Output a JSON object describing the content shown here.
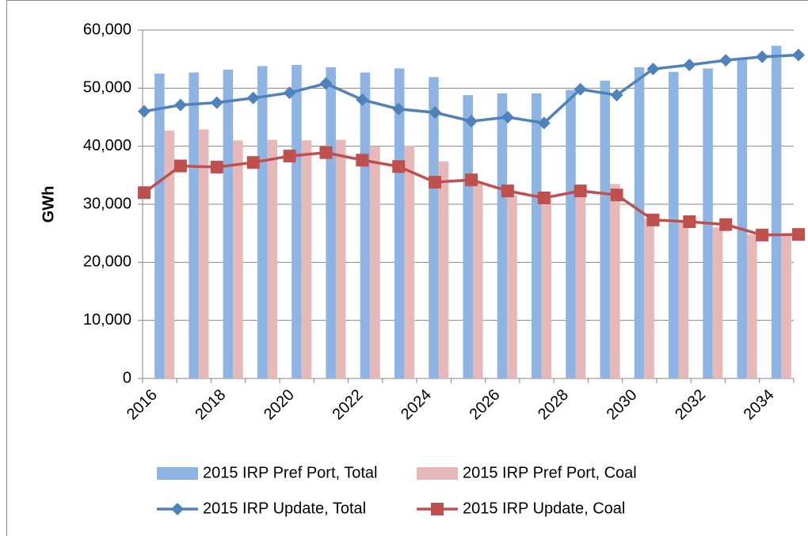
{
  "chart_data": {
    "type": "bar",
    "y_label": "GWh",
    "categories": [
      "2016",
      null,
      "2018",
      null,
      "2020",
      null,
      "2022",
      null,
      "2024",
      null,
      "2026",
      null,
      "2028",
      null,
      "2030",
      null,
      "2032",
      null,
      "2034"
    ],
    "ylim": [
      0,
      60000
    ],
    "yticks": [
      0,
      {
        "value": 10000,
        "label": "10,000"
      },
      {
        "value": 20000,
        "label": "20,000"
      },
      {
        "value": 30000,
        "label": "30,000"
      },
      {
        "value": 40000,
        "label": "40,000"
      },
      {
        "value": 50000,
        "label": "50,000"
      },
      {
        "value": 60000,
        "label": "60,000"
      }
    ],
    "grid": true,
    "legend": "bottom",
    "series": [
      {
        "name": "2015 IRP Pref Port, Total",
        "type": "bar",
        "color": "#8db4e2",
        "values": [
          52500,
          52700,
          53200,
          53800,
          54000,
          53600,
          52700,
          53400,
          51900,
          48800,
          49100,
          49100,
          49700,
          51300,
          53600,
          52800,
          53400,
          55100,
          57300
        ]
      },
      {
        "name": "2015 IRP Pref Port, Coal",
        "type": "bar",
        "color": "#e6b9b8",
        "values": [
          42700,
          42900,
          41000,
          41100,
          41000,
          41100,
          40000,
          40100,
          37400,
          34000,
          31500,
          31000,
          31300,
          33500,
          27600,
          27000,
          26000,
          24800,
          24900
        ]
      },
      {
        "name": "2015 IRP Update, Total",
        "type": "line",
        "marker": "diamond",
        "color": "#4f81bd",
        "values": [
          46000,
          47100,
          47500,
          48300,
          49200,
          50800,
          48000,
          46400,
          45800,
          44300,
          45000,
          44000,
          49800,
          48800,
          53300,
          54000,
          54800,
          55400,
          55700
        ]
      },
      {
        "name": "2015 IRP Update, Coal",
        "type": "line",
        "marker": "square",
        "color": "#c0504d",
        "values": [
          32000,
          36600,
          36400,
          37200,
          38300,
          38900,
          37600,
          36500,
          33800,
          34200,
          32300,
          31100,
          32300,
          31600,
          27300,
          27000,
          26500,
          24700,
          24800
        ]
      }
    ]
  }
}
